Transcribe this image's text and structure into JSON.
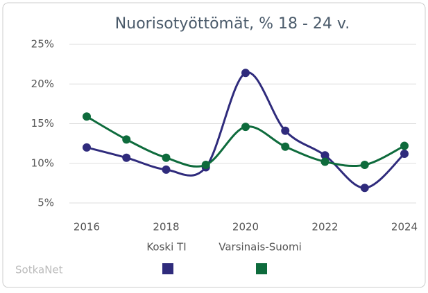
{
  "chart_data": {
    "type": "line",
    "title": "Nuorisotyöttömät, % 18 - 24 v.",
    "x": [
      2016,
      2017,
      2018,
      2019,
      2020,
      2021,
      2022,
      2023,
      2024
    ],
    "series": [
      {
        "name": "Koski TI",
        "color": "#2f2b7c",
        "values": [
          12.0,
          10.7,
          9.2,
          9.5,
          21.4,
          14.1,
          11.0,
          6.9,
          11.2
        ]
      },
      {
        "name": "Varsinais-Suomi",
        "color": "#0e6b3c",
        "values": [
          15.9,
          13.0,
          10.7,
          9.8,
          14.6,
          12.1,
          10.2,
          9.8,
          12.2
        ]
      }
    ],
    "xlim": [
      2016,
      2024
    ],
    "xticks": [
      2016,
      2018,
      2020,
      2022,
      2024
    ],
    "ylim": [
      5,
      25
    ],
    "yticks": [
      {
        "value": 5,
        "label": "5%"
      },
      {
        "value": 10,
        "label": "10%"
      },
      {
        "value": 15,
        "label": "15%"
      },
      {
        "value": 20,
        "label": "20%"
      },
      {
        "value": 25,
        "label": "25%"
      }
    ],
    "grid": true,
    "credit": "SotkaNet"
  }
}
